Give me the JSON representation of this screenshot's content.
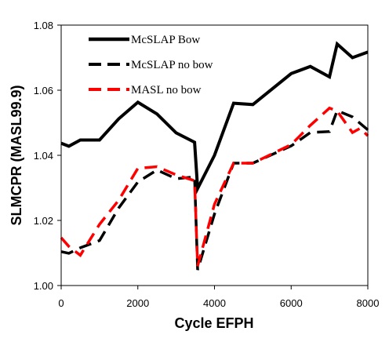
{
  "chart_data": {
    "type": "line",
    "xlabel": "Cycle EFPH",
    "ylabel": "SLMCPR (MASL99.9)",
    "xlim": [
      0,
      8000
    ],
    "ylim": [
      1.0,
      1.08
    ],
    "x_ticks": [
      "0",
      "2000",
      "4000",
      "6000",
      "8000"
    ],
    "y_ticks": [
      "1.00",
      "1.02",
      "1.04",
      "1.06",
      "1.08"
    ],
    "grid": false,
    "legend_position": "top-left",
    "series": [
      {
        "name": "McSLAP Bow",
        "color": "#000000",
        "dash": "solid",
        "points": [
          [
            0,
            1.0437
          ],
          [
            200,
            1.0428
          ],
          [
            500,
            1.0447
          ],
          [
            1000,
            1.0447
          ],
          [
            1500,
            1.0512
          ],
          [
            2000,
            1.0563
          ],
          [
            2500,
            1.0527
          ],
          [
            3000,
            1.0469
          ],
          [
            3480,
            1.044
          ],
          [
            3560,
            1.0298
          ],
          [
            4000,
            1.04
          ],
          [
            4500,
            1.056
          ],
          [
            5000,
            1.0556
          ],
          [
            6000,
            1.0651
          ],
          [
            6500,
            1.0673
          ],
          [
            7000,
            1.0641
          ],
          [
            7200,
            1.0742
          ],
          [
            7600,
            1.07
          ],
          [
            8000,
            1.0717
          ]
        ]
      },
      {
        "name": "McSLAP no bow",
        "color": "#000000",
        "dash": "dashed",
        "points": [
          [
            0,
            1.0104
          ],
          [
            200,
            1.0099
          ],
          [
            500,
            1.0116
          ],
          [
            1000,
            1.0138
          ],
          [
            1500,
            1.0238
          ],
          [
            2000,
            1.0318
          ],
          [
            2500,
            1.0355
          ],
          [
            3000,
            1.0328
          ],
          [
            3480,
            1.0334
          ],
          [
            3560,
            1.0048
          ],
          [
            4000,
            1.022
          ],
          [
            4500,
            1.0376
          ],
          [
            5000,
            1.0376
          ],
          [
            6000,
            1.0429
          ],
          [
            6500,
            1.047
          ],
          [
            7000,
            1.0473
          ],
          [
            7200,
            1.0537
          ],
          [
            7600,
            1.0518
          ],
          [
            8000,
            1.0478
          ]
        ]
      },
      {
        "name": "MASL no bow",
        "color": "#ff0000",
        "dash": "dashed",
        "points": [
          [
            0,
            1.0147
          ],
          [
            200,
            1.012
          ],
          [
            500,
            1.0093
          ],
          [
            1000,
            1.0188
          ],
          [
            1500,
            1.0262
          ],
          [
            2000,
            1.036
          ],
          [
            2500,
            1.0365
          ],
          [
            3000,
            1.034
          ],
          [
            3480,
            1.0322
          ],
          [
            3560,
            1.006
          ],
          [
            4000,
            1.025
          ],
          [
            4500,
            1.0376
          ],
          [
            5000,
            1.0376
          ],
          [
            6000,
            1.0433
          ],
          [
            6500,
            1.0492
          ],
          [
            7000,
            1.0545
          ],
          [
            7200,
            1.0536
          ],
          [
            7600,
            1.047
          ],
          [
            7800,
            1.0483
          ],
          [
            8000,
            1.046
          ]
        ]
      }
    ]
  }
}
